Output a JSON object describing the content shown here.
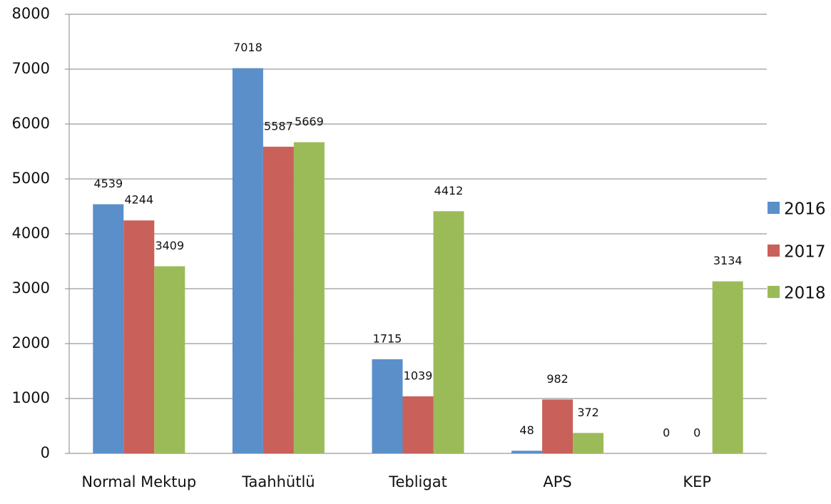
{
  "chart_data": {
    "type": "bar",
    "categories": [
      "Normal Mektup",
      "Taahhütlü",
      "Tebligat",
      "APS",
      "KEP"
    ],
    "series": [
      {
        "name": "2016",
        "color": "#5b8fc9",
        "values": [
          4539,
          7018,
          1715,
          48,
          0
        ]
      },
      {
        "name": "2017",
        "color": "#c9605a",
        "values": [
          4244,
          5587,
          1039,
          982,
          0
        ]
      },
      {
        "name": "2018",
        "color": "#9bbb59",
        "values": [
          3409,
          5669,
          4412,
          372,
          3134
        ]
      }
    ],
    "ylim": [
      0,
      8000
    ],
    "yticks": [
      0,
      1000,
      2000,
      3000,
      4000,
      5000,
      6000,
      7000,
      8000
    ],
    "grid": true,
    "legend": "right"
  }
}
